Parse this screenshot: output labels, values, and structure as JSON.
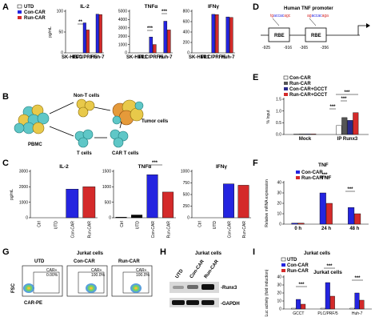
{
  "panels": {
    "A": "A",
    "B": "B",
    "C": "C",
    "D": "D",
    "E": "E",
    "F": "F",
    "G": "G",
    "H": "H",
    "I": "I"
  },
  "colors": {
    "utd": "#ffffff",
    "con": "#2424e0",
    "run": "#d42a2a",
    "con_gcct": "#2a2a8a",
    "run_gcct": "#d42a2a",
    "dark": "#555555"
  },
  "A": {
    "legend": [
      "UTD",
      "Con-CAR",
      "Run-CAR"
    ],
    "ylabel": "pg/mL",
    "cells": [
      "SK-HEP1",
      "PLC/PRF/5",
      "Huh-7"
    ]
  },
  "B": {
    "labels": {
      "nont": "Non-T cells",
      "tumor": "Tumor cells",
      "pbmc": "PBMC",
      "tcells": "T cells",
      "cart": "CAR T cells"
    }
  },
  "C": {
    "ylabel": "pg/mL",
    "xcats": [
      "Ctrl",
      "UTD",
      "Con-CAR",
      "Run-CAR"
    ]
  },
  "D": {
    "title": "Human TNF promoter",
    "seq1": [
      "tg",
      "accac",
      "agc"
    ],
    "seq2": [
      "ag",
      "accac",
      "aga"
    ],
    "box": "RBE",
    "pos": [
      "-925",
      "-916",
      "-365",
      "-356"
    ]
  },
  "E": {
    "legend": [
      "Con-CAR",
      "Run-CAR",
      "Con-CAR+GCCT",
      "Run-CAR+GCCT"
    ],
    "ylabel": "% Input",
    "groups": [
      "Mock",
      "IP Runx3"
    ]
  },
  "F": {
    "title": "TNF",
    "ylabel": "Relative mRNA expression",
    "legend": [
      "Con-CAR",
      "Run-CAR"
    ],
    "x": [
      "0 h",
      "24 h",
      "48 h"
    ]
  },
  "G": {
    "title_cells": "Jurkat cells",
    "cols": [
      "UTD",
      "Con-CAR",
      "Run-CAR"
    ],
    "gates": [
      {
        "name": "CAR+",
        "pct": "0.00%"
      },
      {
        "name": "CAR+",
        "pct": "100.0%"
      },
      {
        "name": "CAR+",
        "pct": "100.0%"
      }
    ],
    "ylabel": "FSC",
    "xlabel": "CAR-PE"
  },
  "H": {
    "title": "Jurkat cells",
    "lanes": [
      "UTD",
      "Con-CAR",
      "Run-CAR"
    ],
    "bands": [
      "-Runx3",
      "-GAPDH"
    ]
  },
  "I": {
    "title": "Jurkat cells",
    "legend": [
      "UTD",
      "Con-CAR",
      "Run-CAR"
    ],
    "ylabel": "Luc activity (fold induction)",
    "cats": [
      "GCCT",
      "PLC/PRF/5",
      "Huh-7"
    ]
  },
  "chart_data": [
    {
      "type": "bar",
      "panel": "A",
      "title": "IL-2",
      "ylabel": "pg/mL",
      "ylim": [
        0,
        100
      ],
      "yticks": [
        "0",
        "50",
        "100"
      ],
      "categories": [
        "SK-HEP1",
        "PLC/PRF/5",
        "Huh-7"
      ],
      "series": [
        {
          "name": "UTD",
          "values": [
            0,
            0,
            0
          ]
        },
        {
          "name": "Con-CAR",
          "values": [
            0,
            72,
            93
          ]
        },
        {
          "name": "Run-CAR",
          "values": [
            0,
            55,
            92
          ]
        }
      ],
      "sig": [
        "**"
      ]
    },
    {
      "type": "bar",
      "panel": "A",
      "title": "TNFα",
      "ylim": [
        0,
        5000
      ],
      "yticks": [
        "0",
        "1000",
        "2000",
        "3000",
        "4000",
        "5000"
      ],
      "categories": [
        "SK-HEP1",
        "PLC/PRF/5",
        "Huh-7"
      ],
      "series": [
        {
          "name": "UTD",
          "values": [
            0,
            0,
            0
          ]
        },
        {
          "name": "Con-CAR",
          "values": [
            0,
            1900,
            3800
          ]
        },
        {
          "name": "Run-CAR",
          "values": [
            0,
            1000,
            2750
          ]
        }
      ],
      "sig": [
        "***",
        "***"
      ]
    },
    {
      "type": "bar",
      "panel": "A",
      "title": "IFNγ",
      "ylim": [
        0,
        800
      ],
      "yticks": [
        "0",
        "200",
        "400",
        "600",
        "800"
      ],
      "categories": [
        "SK-HEP1",
        "PLC/PRF/5",
        "Huh-7"
      ],
      "series": [
        {
          "name": "UTD",
          "values": [
            0,
            0,
            0
          ]
        },
        {
          "name": "Con-CAR",
          "values": [
            0,
            740,
            690
          ]
        },
        {
          "name": "Run-CAR",
          "values": [
            0,
            735,
            680
          ]
        }
      ],
      "sig": []
    },
    {
      "type": "bar",
      "panel": "C",
      "title": "IL-2",
      "ylabel": "pg/mL",
      "ylim": [
        0,
        3000
      ],
      "yticks": [
        "0",
        "1000",
        "2000",
        "3000"
      ],
      "categories": [
        "Ctrl",
        "UTD",
        "Con-CAR",
        "Run-CAR"
      ],
      "values": [
        0,
        0,
        1850,
        2000
      ]
    },
    {
      "type": "bar",
      "panel": "C",
      "title": "TNFα",
      "ylim": [
        0,
        1500
      ],
      "yticks": [
        "0",
        "500",
        "1000",
        "1500"
      ],
      "categories": [
        "Ctrl",
        "UTD",
        "Con-CAR",
        "Run-CAR"
      ],
      "values": [
        20,
        90,
        1390,
        830
      ],
      "sig": [
        "***"
      ]
    },
    {
      "type": "bar",
      "panel": "C",
      "title": "IFNγ",
      "ylim": [
        0,
        1000
      ],
      "yticks": [
        "0",
        "250",
        "500",
        "750",
        "1000"
      ],
      "categories": [
        "Ctrl",
        "UTD",
        "Con-CAR",
        "Run-CAR"
      ],
      "values": [
        0,
        0,
        730,
        700
      ]
    },
    {
      "type": "bar",
      "panel": "E",
      "ylabel": "% Input",
      "ylim": [
        0,
        1.5
      ],
      "yticks": [
        "0.0",
        "0.5",
        "1.0",
        "1.5"
      ],
      "categories": [
        "Mock",
        "IP Runx3"
      ],
      "series": [
        {
          "name": "Con-CAR",
          "values": [
            0.02,
            0.38
          ]
        },
        {
          "name": "Run-CAR",
          "values": [
            0.02,
            0.72
          ]
        },
        {
          "name": "Con-CAR+GCCT",
          "values": [
            0.02,
            0.6
          ]
        },
        {
          "name": "Run-CAR+GCCT",
          "values": [
            0.02,
            0.93
          ]
        }
      ],
      "sig": [
        "***",
        "***",
        "***"
      ]
    },
    {
      "type": "bar",
      "panel": "F",
      "title": "TNF",
      "ylabel": "Relative mRNA expression",
      "ylim": [
        0,
        40
      ],
      "yticks": [
        "0",
        "10",
        "20",
        "30",
        "40"
      ],
      "categories": [
        "0 h",
        "24 h",
        "48 h"
      ],
      "series": [
        {
          "name": "Con-CAR",
          "values": [
            1,
            30,
            16
          ]
        },
        {
          "name": "Run-CAR",
          "values": [
            1,
            20,
            10
          ]
        }
      ],
      "sig": [
        "***",
        "***"
      ]
    },
    {
      "type": "bar",
      "panel": "I",
      "title": "Jurkat cells",
      "ylabel": "Luc activity (fold induction)",
      "ylim": [
        0,
        40
      ],
      "yticks": [
        "0",
        "10",
        "20",
        "30",
        "40"
      ],
      "categories": [
        "GCCT",
        "PLC/PRF/5",
        "Huh-7"
      ],
      "series": [
        {
          "name": "UTD",
          "values": [
            1,
            1,
            1
          ]
        },
        {
          "name": "Con-CAR",
          "values": [
            12,
            33,
            20
          ]
        },
        {
          "name": "Run-CAR",
          "values": [
            6,
            16,
            11
          ]
        }
      ],
      "sig": [
        "***",
        "***",
        "***"
      ]
    }
  ]
}
